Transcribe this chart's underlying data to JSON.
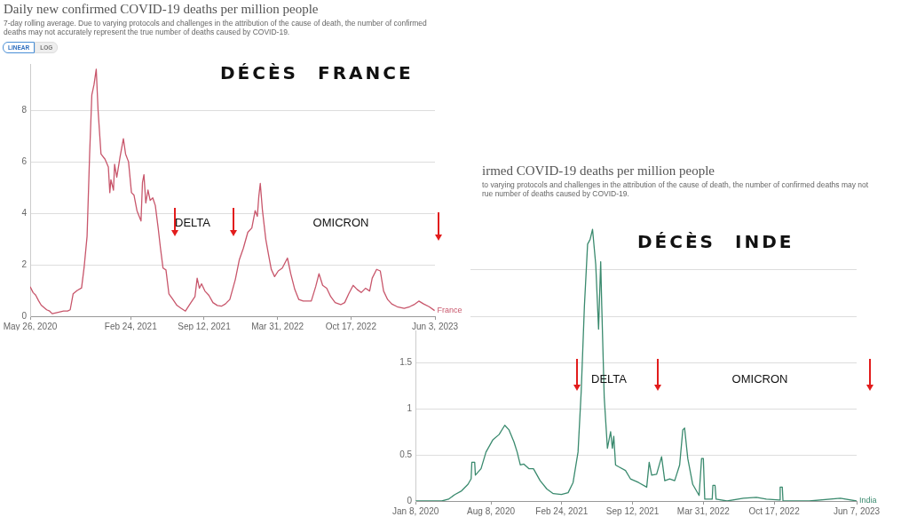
{
  "chart_data": [
    {
      "type": "line",
      "title": "Daily new confirmed COVID-19 deaths per million people",
      "subtitle": "7-day rolling average. Due to varying protocols and challenges in the attribution of the cause of death, the number of confirmed deaths may not accurately represent the true number of deaths caused by COVID-19.",
      "annotations": [
        "DÉCÈS FRANCE",
        "DELTA",
        "OMICRON",
        "LINEAR",
        "LOG"
      ],
      "x": [
        "2020-05-26",
        "2020-06-03",
        "2020-06-10",
        "2020-06-18",
        "2020-06-25",
        "2020-07-10",
        "2020-07-18",
        "2020-07-25",
        "2020-08-10",
        "2020-08-25",
        "2020-09-05",
        "2020-09-12",
        "2020-09-20",
        "2020-10-01",
        "2020-10-13",
        "2020-10-20",
        "2020-10-28",
        "2020-11-04",
        "2020-11-10",
        "2020-11-16",
        "2020-11-22",
        "2020-11-27",
        "2020-12-05",
        "2020-12-16",
        "2020-12-25",
        "2020-12-29",
        "2021-01-01",
        "2021-01-08",
        "2021-01-11",
        "2021-01-17",
        "2021-01-26",
        "2021-02-04",
        "2021-02-10",
        "2021-02-18",
        "2021-02-26",
        "2021-03-05",
        "2021-03-13",
        "2021-03-24",
        "2021-03-28",
        "2021-04-01",
        "2021-04-06",
        "2021-04-12",
        "2021-04-18",
        "2021-04-25",
        "2021-05-02",
        "2021-05-10",
        "2021-05-16",
        "2021-05-23",
        "2021-05-31",
        "2021-06-08",
        "2021-06-19",
        "2021-06-30",
        "2021-07-11",
        "2021-07-23",
        "2021-08-07",
        "2021-08-18",
        "2021-08-24",
        "2021-08-30",
        "2021-09-05",
        "2021-09-14",
        "2021-09-25",
        "2021-10-06",
        "2021-10-18",
        "2021-10-29",
        "2021-11-09",
        "2021-11-21",
        "2021-12-06",
        "2021-12-17",
        "2021-12-28",
        "2022-01-09",
        "2022-01-20",
        "2022-01-29",
        "2022-02-04",
        "2022-02-08",
        "2022-02-12",
        "2022-02-18",
        "2022-02-27",
        "2022-03-06",
        "2022-03-14",
        "2022-03-23",
        "2022-04-02",
        "2022-04-13",
        "2022-04-27",
        "2022-05-06",
        "2022-05-17",
        "2022-05-28",
        "2022-06-09",
        "2022-07-01",
        "2022-07-13",
        "2022-07-22",
        "2022-08-01",
        "2022-08-12",
        "2022-08-23",
        "2022-09-04",
        "2022-09-19",
        "2022-09-30",
        "2022-10-11",
        "2022-10-23",
        "2022-11-03",
        "2022-11-14",
        "2022-11-26",
        "2022-12-07",
        "2022-12-14",
        "2022-12-26",
        "2023-01-05",
        "2023-01-14",
        "2023-01-25",
        "2023-02-05",
        "2023-02-20",
        "2023-03-11",
        "2023-03-26",
        "2023-04-07",
        "2023-04-20",
        "2023-05-03",
        "2023-05-18",
        "2023-06-02"
      ],
      "series": [
        {
          "name": "France",
          "color": "#c8566b",
          "values": [
            1.15,
            0.92,
            0.82,
            0.6,
            0.43,
            0.25,
            0.2,
            0.1,
            0.15,
            0.2,
            0.2,
            0.25,
            0.87,
            1.0,
            1.1,
            1.9,
            3.1,
            6.3,
            8.6,
            9.0,
            9.6,
            8.0,
            6.3,
            6.1,
            5.8,
            4.8,
            5.3,
            4.9,
            5.9,
            5.4,
            6.2,
            6.9,
            6.3,
            6.0,
            4.8,
            4.7,
            4.1,
            3.7,
            5.2,
            5.5,
            4.4,
            4.9,
            4.5,
            4.6,
            4.3,
            3.4,
            2.65,
            1.87,
            1.8,
            0.87,
            0.65,
            0.42,
            0.31,
            0.2,
            0.53,
            0.76,
            1.48,
            1.09,
            1.26,
            0.98,
            0.81,
            0.53,
            0.42,
            0.39,
            0.48,
            0.65,
            1.43,
            2.2,
            2.65,
            3.26,
            3.43,
            4.1,
            3.88,
            4.66,
            5.16,
            4.1,
            2.99,
            2.43,
            1.82,
            1.54,
            1.76,
            1.87,
            2.26,
            1.65,
            1.04,
            0.65,
            0.59,
            0.59,
            1.15,
            1.65,
            1.2,
            1.09,
            0.76,
            0.53,
            0.45,
            0.53,
            0.87,
            1.2,
            1.04,
            0.92,
            1.09,
            0.98,
            1.48,
            1.82,
            1.76,
            0.98,
            0.65,
            0.48,
            0.37,
            0.31,
            0.37,
            0.45,
            0.59,
            0.48,
            0.37,
            0.22
          ]
        }
      ],
      "xlim": [
        "2020-05-26",
        "2023-06-03"
      ],
      "xticks": [
        {
          "value": "2020-05-26",
          "label": "May 26, 2020"
        },
        {
          "value": "2021-02-24",
          "label": "Feb 24, 2021"
        },
        {
          "value": "2021-09-12",
          "label": "Sep 12, 2021"
        },
        {
          "value": "2022-03-31",
          "label": "Mar 31, 2022"
        },
        {
          "value": "2022-10-17",
          "label": "Oct 17, 2022"
        },
        {
          "value": "2023-06-03",
          "label": "Jun 3, 2023"
        }
      ],
      "ylim": [
        0,
        9.8
      ],
      "yticks": [
        0,
        2,
        4,
        6,
        8
      ],
      "grid": "y"
    },
    {
      "type": "line",
      "title": "irmed COVID-19 deaths per million people",
      "subtitle": "to varying protocols and challenges in the attribution of the cause of death, the number of confirmed deaths may not\nrue number of deaths caused by COVID-19.",
      "annotations": [
        "DÉCÈS INDE",
        "DELTA",
        "OMICRON"
      ],
      "x": [
        "2020-01-08",
        "2020-03-22",
        "2020-04-10",
        "2020-04-28",
        "2020-05-17",
        "2020-06-04",
        "2020-06-13",
        "2020-06-15",
        "2020-06-23",
        "2020-06-25",
        "2020-07-11",
        "2020-07-25",
        "2020-08-13",
        "2020-08-31",
        "2020-09-16",
        "2020-09-28",
        "2020-10-12",
        "2020-10-21",
        "2020-10-30",
        "2020-11-09",
        "2020-11-23",
        "2020-12-06",
        "2020-12-25",
        "2021-01-13",
        "2021-01-31",
        "2021-02-23",
        "2021-03-14",
        "2021-03-28",
        "2021-04-11",
        "2021-04-20",
        "2021-04-29",
        "2021-05-08",
        "2021-05-15",
        "2021-05-22",
        "2021-05-31",
        "2021-06-08",
        "2021-06-14",
        "2021-06-17",
        "2021-06-24",
        "2021-07-03",
        "2021-07-12",
        "2021-07-17",
        "2021-07-21",
        "2021-07-26",
        "2021-08-04",
        "2021-08-23",
        "2021-09-06",
        "2021-09-29",
        "2021-10-22",
        "2021-10-29",
        "2021-11-05",
        "2021-11-19",
        "2021-12-03",
        "2021-12-12",
        "2021-12-26",
        "2022-01-09",
        "2022-01-23",
        "2022-02-01",
        "2022-02-06",
        "2022-02-15",
        "2022-03-01",
        "2022-03-19",
        "2022-03-26",
        "2022-03-31",
        "2022-04-04",
        "2022-04-25",
        "2022-04-27",
        "2022-05-03",
        "2022-05-06",
        "2022-06-06",
        "2022-07-22",
        "2022-08-28",
        "2022-09-25",
        "2022-11-01",
        "2022-11-03",
        "2022-11-09",
        "2022-11-11",
        "2023-01-24",
        "2023-04-22",
        "2023-06-07"
      ],
      "series": [
        {
          "name": "India",
          "color": "#3a8a6e",
          "values": [
            0,
            0,
            0.02,
            0.07,
            0.11,
            0.18,
            0.24,
            0.42,
            0.42,
            0.28,
            0.35,
            0.53,
            0.66,
            0.72,
            0.82,
            0.77,
            0.64,
            0.53,
            0.39,
            0.4,
            0.35,
            0.35,
            0.22,
            0.13,
            0.08,
            0.07,
            0.09,
            0.2,
            0.53,
            1.19,
            2.11,
            2.78,
            2.83,
            2.94,
            2.56,
            1.86,
            2.59,
            2.11,
            1.12,
            0.57,
            0.75,
            0.57,
            0.7,
            0.39,
            0.37,
            0.33,
            0.24,
            0.2,
            0.15,
            0.42,
            0.28,
            0.29,
            0.48,
            0.22,
            0.24,
            0.22,
            0.39,
            0.77,
            0.79,
            0.46,
            0.18,
            0.06,
            0.46,
            0.46,
            0.02,
            0.02,
            0.17,
            0.17,
            0.02,
            0,
            0.03,
            0.04,
            0.02,
            0.01,
            0.15,
            0.15,
            0,
            0,
            0.03,
            0
          ]
        }
      ],
      "xlim": [
        "2020-01-08",
        "2023-06-07"
      ],
      "xticks": [
        {
          "value": "2020-01-08",
          "label": "Jan 8, 2020"
        },
        {
          "value": "2020-08-08",
          "label": "Aug 8, 2020"
        },
        {
          "value": "2021-02-24",
          "label": "Feb 24, 2021"
        },
        {
          "value": "2021-09-12",
          "label": "Sep 12, 2021"
        },
        {
          "value": "2022-03-31",
          "label": "Mar 31, 2022"
        },
        {
          "value": "2022-10-17",
          "label": "Oct 17, 2022"
        },
        {
          "value": "2023-06-07",
          "label": "Jun 7, 2023"
        }
      ],
      "ylim": [
        0,
        3
      ],
      "yticks": [
        0,
        0.5,
        1,
        1.5,
        {
          "value": 2,
          "label": null
        },
        {
          "value": 2.5,
          "label": null
        }
      ],
      "grid": "y"
    }
  ]
}
